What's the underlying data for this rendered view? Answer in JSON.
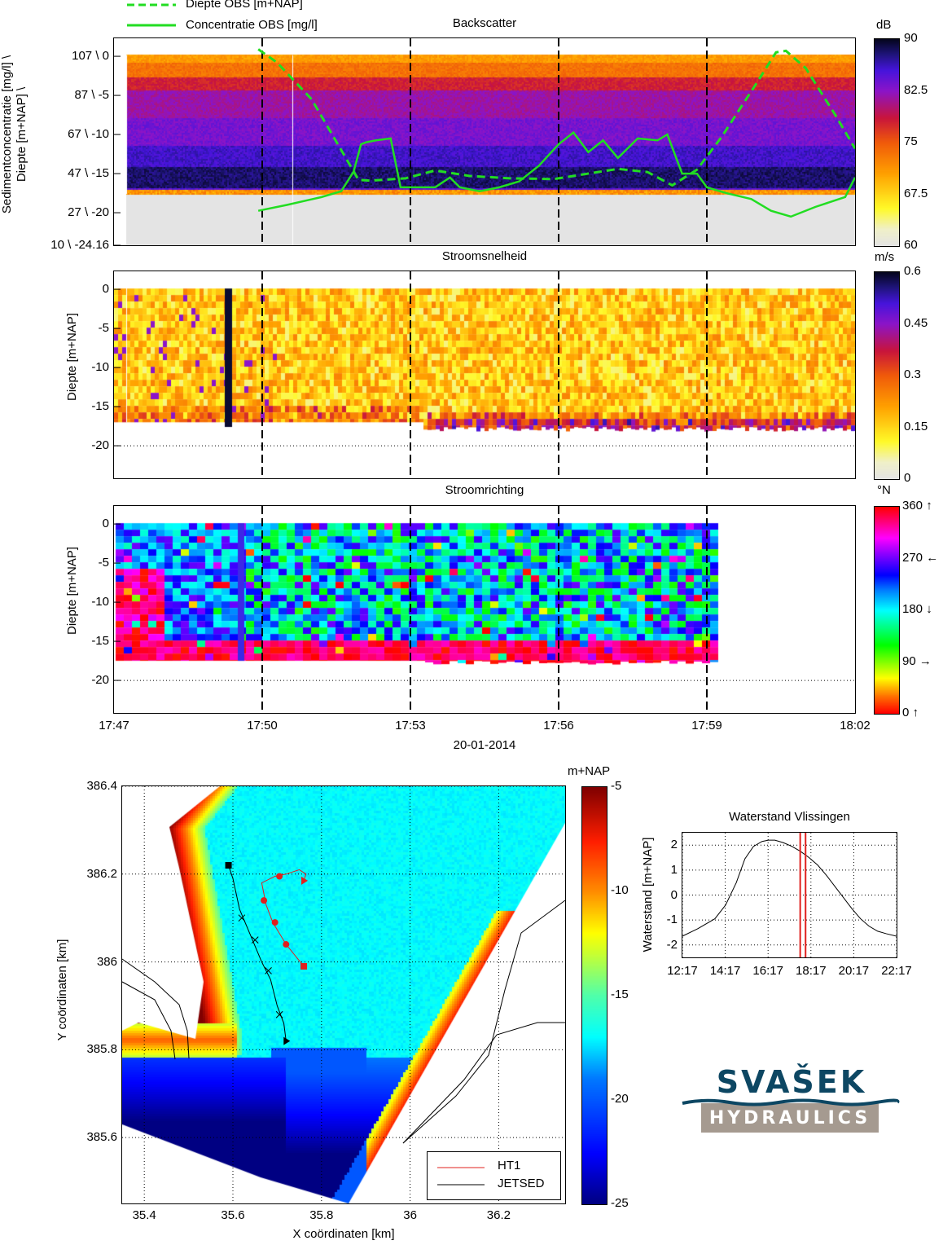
{
  "legend_top": {
    "items": [
      {
        "label": "Diepte OBS [m+NAP]",
        "style": "dashed",
        "color": "#22dd22"
      },
      {
        "label": "Concentratie OBS [mg/l]",
        "style": "solid",
        "color": "#22dd22"
      }
    ]
  },
  "time_axis": {
    "ticks": [
      "17:47",
      "17:50",
      "17:53",
      "17:56",
      "17:59",
      "18:02"
    ],
    "date_label": "20-01-2014"
  },
  "colors": {
    "obs_line": "#22dd22",
    "hs_track": "#e0201e",
    "jetsed_track": "#000000",
    "logo_blue": "#0d4763",
    "logo_grey": "#a59a90"
  },
  "chart_data": [
    {
      "id": "backscatter",
      "type": "heatmap",
      "title": "Backscatter",
      "ylabel_line1": "Sedimentconcentratie [mg/l] \\",
      "ylabel_line2": "Diepte [m+NAP] \\",
      "ytick_labels": [
        "107 \\ 0",
        "87 \\ -5",
        "67 \\ -10",
        "47 \\ -15",
        "27 \\ -20",
        "10 \\ -24.16"
      ],
      "ytick_depths": [
        0,
        -5,
        -10,
        -15,
        -20,
        -24.16
      ],
      "ylim": [
        -24.16,
        2.3
      ],
      "xlim_minutes": [
        0,
        15
      ],
      "x_tick_minutes": [
        0,
        3,
        6,
        9,
        12,
        15
      ],
      "vertical_dashed_minutes": [
        3,
        6,
        9,
        12
      ],
      "colorbar": {
        "unit": "dB",
        "ticks": [
          "90",
          "82.5",
          "75",
          "67.5",
          "60"
        ],
        "range": [
          60,
          90
        ]
      },
      "series": [
        {
          "name": "Diepte OBS [m+NAP]",
          "style": "dashed",
          "points_minutes_depth": [
            [
              2.92,
              0.9
            ],
            [
              3.3,
              -0.8
            ],
            [
              4.0,
              -5.5
            ],
            [
              4.6,
              -12.0
            ],
            [
              4.95,
              -15.8
            ],
            [
              5.2,
              -15.9
            ],
            [
              5.9,
              -15.6
            ],
            [
              6.5,
              -14.6
            ],
            [
              7.2,
              -15.3
            ],
            [
              8.0,
              -15.6
            ],
            [
              8.9,
              -15.7
            ],
            [
              9.4,
              -15.2
            ],
            [
              10.2,
              -14.4
            ],
            [
              10.8,
              -14.8
            ],
            [
              11.3,
              -16.5
            ],
            [
              11.8,
              -14.5
            ],
            [
              12.3,
              -10.3
            ],
            [
              13.0,
              -3.5
            ],
            [
              13.4,
              0.5
            ],
            [
              13.6,
              0.7
            ],
            [
              14.0,
              -1.5
            ],
            [
              14.6,
              -7.5
            ],
            [
              15.0,
              -11.8
            ]
          ]
        },
        {
          "name": "Concentratie OBS [mg/l]",
          "style": "solid",
          "points_minutes_mgl": [
            [
              2.92,
              28
            ],
            [
              3.5,
              31
            ],
            [
              4.2,
              35
            ],
            [
              4.6,
              38
            ],
            [
              4.85,
              48
            ],
            [
              5.0,
              62
            ],
            [
              5.1,
              63
            ],
            [
              5.3,
              64
            ],
            [
              5.6,
              65
            ],
            [
              5.8,
              40
            ],
            [
              6.1,
              40
            ],
            [
              6.5,
              40
            ],
            [
              6.8,
              45
            ],
            [
              7.0,
              40
            ],
            [
              7.4,
              38
            ],
            [
              7.8,
              40
            ],
            [
              8.2,
              43
            ],
            [
              8.6,
              51
            ],
            [
              9.0,
              62
            ],
            [
              9.3,
              68
            ],
            [
              9.6,
              58
            ],
            [
              9.9,
              64
            ],
            [
              10.2,
              55
            ],
            [
              10.6,
              65
            ],
            [
              11.0,
              64
            ],
            [
              11.2,
              67
            ],
            [
              11.5,
              47
            ],
            [
              11.8,
              47
            ],
            [
              12.0,
              40
            ],
            [
              12.4,
              37
            ],
            [
              12.9,
              34
            ],
            [
              13.3,
              28
            ],
            [
              13.7,
              25
            ],
            [
              14.2,
              30
            ],
            [
              14.8,
              35
            ],
            [
              15.0,
              45
            ]
          ]
        }
      ]
    },
    {
      "id": "stroomsnelheid",
      "type": "heatmap",
      "title": "Stroomsnelheid",
      "ylabel": "Diepte [m+NAP]",
      "ytick_labels": [
        "0",
        "-5",
        "-10",
        "-15",
        "-20"
      ],
      "ytick_depths": [
        0,
        -5,
        -10,
        -15,
        -20
      ],
      "ylim": [
        -24.16,
        2.3
      ],
      "xlim_minutes": [
        0,
        15
      ],
      "vertical_dashed_minutes": [
        3,
        6,
        9,
        12
      ],
      "colorbar": {
        "unit": "m/s",
        "ticks": [
          "0.6",
          "0.45",
          "0.3",
          "0.15",
          "0"
        ],
        "range": [
          0,
          0.6
        ]
      }
    },
    {
      "id": "stroomrichting",
      "type": "heatmap",
      "title": "Stroomrichting",
      "ylabel": "Diepte [m+NAP]",
      "ytick_labels": [
        "0",
        "-5",
        "-10",
        "-15",
        "-20"
      ],
      "ytick_depths": [
        0,
        -5,
        -10,
        -15,
        -20
      ],
      "ylim": [
        -24.16,
        2.3
      ],
      "xlim_minutes": [
        0,
        15
      ],
      "data_extent_minutes": [
        0,
        12.2
      ],
      "vertical_dashed_minutes": [
        3,
        6,
        9,
        12
      ],
      "colorbar": {
        "unit": "°N",
        "ticks": [
          "360 ↑",
          "270 ←",
          "180 ↓",
          "90 →",
          "0 ↑"
        ],
        "range": [
          0,
          360
        ]
      }
    },
    {
      "id": "bathymetry-map",
      "type": "heatmap",
      "xlabel": "X coördinaten [km]",
      "ylabel": "Y coördinaten [km]",
      "xticks": [
        "35.4",
        "35.6",
        "35.8",
        "36",
        "36.2"
      ],
      "xtick_values": [
        35.4,
        35.6,
        35.8,
        36.0,
        36.2
      ],
      "yticks": [
        "386.4",
        "386.2",
        "386",
        "385.8",
        "385.6"
      ],
      "ytick_values": [
        386.4,
        386.2,
        386.0,
        385.8,
        385.6
      ],
      "xlim": [
        35.35,
        36.35
      ],
      "ylim": [
        385.45,
        386.4
      ],
      "grid": true,
      "colorbar": {
        "unit": "m+NAP",
        "ticks": [
          "-5",
          "-10",
          "-15",
          "-20",
          "-25"
        ],
        "range": [
          -25,
          -5
        ]
      },
      "legend": {
        "position": "bottom-right",
        "items": [
          {
            "label": "HT1",
            "color": "#e0201e"
          },
          {
            "label": "JETSED",
            "color": "#000000"
          }
        ]
      },
      "tracks": [
        {
          "name": "HT1",
          "points": [
            [
              35.76,
              385.99
            ],
            [
              35.72,
              386.04
            ],
            [
              35.69,
              386.09
            ],
            [
              35.675,
              386.13
            ],
            [
              35.665,
              386.18
            ],
            [
              35.695,
              386.195
            ],
            [
              35.72,
              386.2
            ],
            [
              35.75,
              386.21
            ],
            [
              35.765,
              386.2
            ],
            [
              35.76,
              386.185
            ]
          ],
          "markers": [
            [
              35.72,
              386.04
            ],
            [
              35.695,
              386.09
            ],
            [
              35.67,
              386.14
            ],
            [
              35.705,
              386.195
            ]
          ]
        },
        {
          "name": "JETSED",
          "points": [
            [
              35.59,
              386.22
            ],
            [
              35.6,
              386.19
            ],
            [
              35.615,
              386.12
            ],
            [
              35.64,
              386.06
            ],
            [
              35.665,
              386.0
            ],
            [
              35.685,
              385.96
            ],
            [
              35.7,
              385.9
            ],
            [
              35.715,
              385.86
            ],
            [
              35.72,
              385.82
            ]
          ],
          "markers": [
            [
              35.62,
              386.1
            ],
            [
              35.65,
              386.05
            ],
            [
              35.68,
              385.98
            ],
            [
              35.705,
              385.88
            ]
          ]
        }
      ]
    },
    {
      "id": "waterstand",
      "type": "line",
      "title": "Waterstand Vlissingen",
      "ylabel": "Waterstand [m+NAP]",
      "xticks": [
        "12:17",
        "14:17",
        "16:17",
        "18:17",
        "20:17",
        "22:17"
      ],
      "xtick_hours": [
        12.283,
        14.283,
        16.283,
        18.283,
        20.283,
        22.283
      ],
      "xlim_hours": [
        12.283,
        22.283
      ],
      "yticks": [
        "2",
        "1",
        "0",
        "-1",
        "-2"
      ],
      "ytick_values": [
        2,
        1,
        0,
        -1,
        -2
      ],
      "ylim": [
        -2.5,
        2.5
      ],
      "grid": true,
      "series": [
        {
          "name": "Waterstand",
          "x": [
            12.28,
            13.0,
            13.8,
            14.3,
            14.8,
            15.2,
            15.6,
            16.0,
            16.3,
            16.6,
            17.0,
            17.4,
            17.8,
            18.2,
            18.6,
            19.0,
            19.4,
            19.8,
            20.2,
            20.6,
            21.0,
            21.4,
            21.8,
            22.28
          ],
          "y": [
            -1.65,
            -1.35,
            -0.95,
            -0.4,
            0.5,
            1.45,
            1.95,
            2.15,
            2.2,
            2.2,
            2.1,
            1.95,
            1.75,
            1.5,
            1.2,
            0.8,
            0.35,
            -0.1,
            -0.55,
            -0.95,
            -1.25,
            -1.45,
            -1.55,
            -1.65
          ]
        }
      ],
      "vertical_markers_hours": [
        17.783,
        18.033
      ]
    }
  ],
  "logo": {
    "top_text": "SVAŠEK",
    "bottom_text": "HYDRAULICS"
  }
}
